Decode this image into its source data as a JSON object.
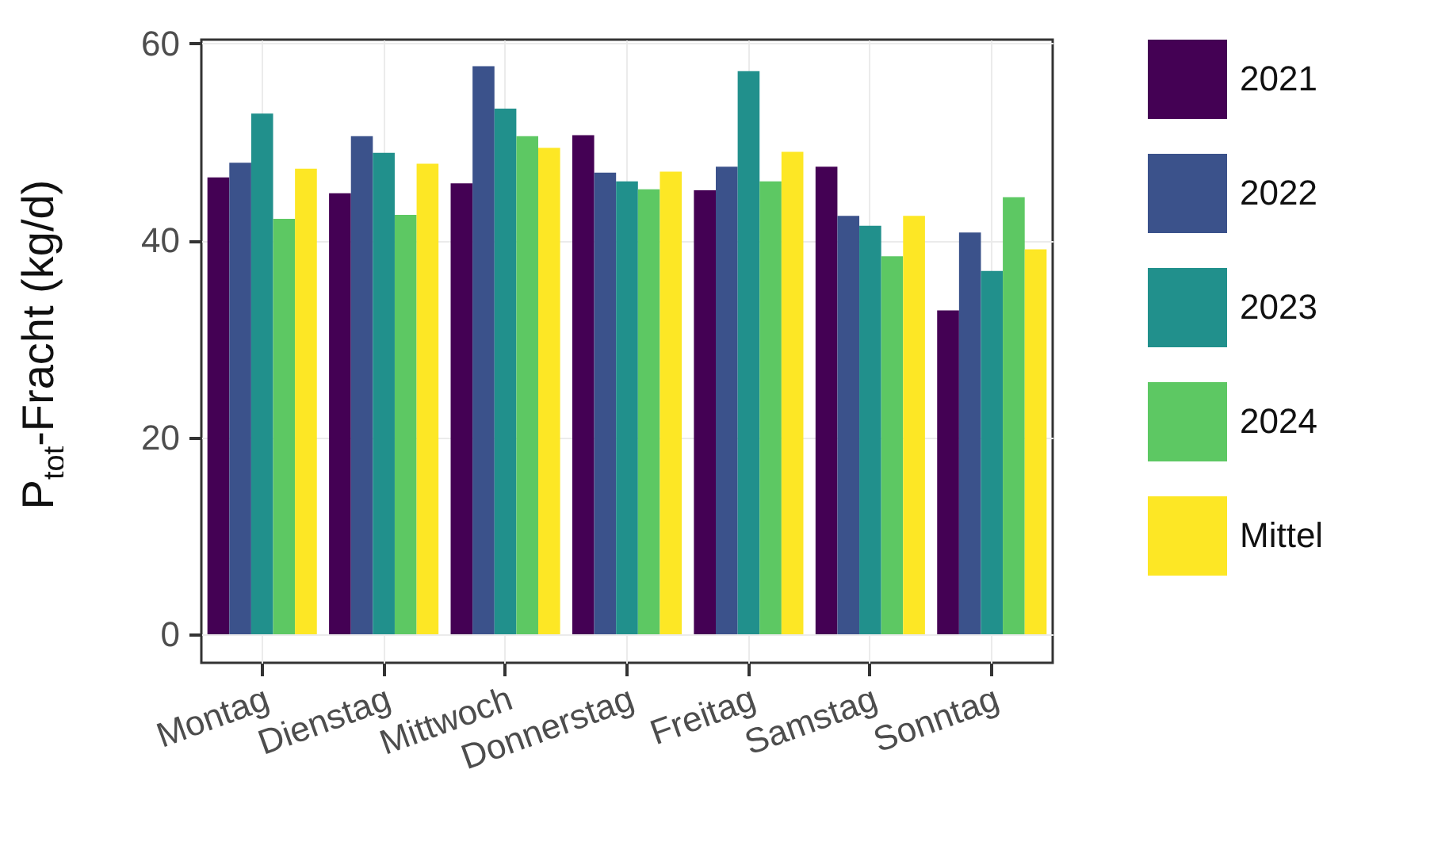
{
  "chart_data": {
    "type": "bar",
    "ylabel": "P$_{tot}$-Fracht (kg/d)",
    "categories": [
      "Montag",
      "Dienstag",
      "Mittwoch",
      "Donnerstag",
      "Freitag",
      "Samstag",
      "Sonntag"
    ],
    "series": [
      {
        "name": "2021",
        "color": "#440154",
        "values": [
          46.4,
          44.8,
          45.8,
          50.7,
          45.1,
          47.5,
          32.9
        ]
      },
      {
        "name": "2022",
        "color": "#3b528b",
        "values": [
          47.9,
          50.6,
          57.7,
          46.9,
          47.5,
          42.5,
          40.8
        ]
      },
      {
        "name": "2023",
        "color": "#21908c",
        "values": [
          52.9,
          48.9,
          53.4,
          46.0,
          57.2,
          41.5,
          36.9
        ]
      },
      {
        "name": "2024",
        "color": "#5dc863",
        "values": [
          42.2,
          42.6,
          50.6,
          45.2,
          46.0,
          38.4,
          44.4
        ]
      },
      {
        "name": "Mittel",
        "color": "#fde725",
        "values": [
          47.3,
          47.8,
          49.4,
          47.0,
          49.0,
          42.5,
          39.1
        ]
      }
    ],
    "ylim": [
      -2.9,
      60.4
    ],
    "yticks": [
      0,
      20,
      40,
      60
    ],
    "grid": true,
    "legend": "right"
  }
}
